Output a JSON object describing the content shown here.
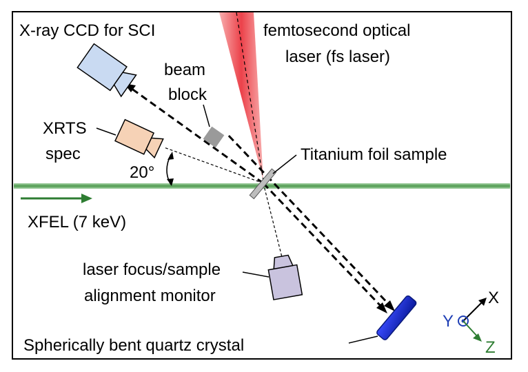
{
  "labels": {
    "ccd": "X-ray CCD for SCI",
    "laser_line1": "femtosecond optical",
    "laser_line2": "laser (fs laser)",
    "beam_block_line1": "beam",
    "beam_block_line2": "block",
    "xrts_line1": "XRTS",
    "xrts_line2": "spec",
    "angle": "20°",
    "sample": "Titanium foil sample",
    "xfel": "XFEL (7 keV)",
    "monitor_line1": "laser focus/sample",
    "monitor_line2": "alignment monitor",
    "crystal": "Spherically bent quartz crystal",
    "axis_x": "X",
    "axis_y": "Y",
    "axis_z": "Z"
  },
  "colors": {
    "laser": "#f03a3a",
    "xfel": "#6fae6f",
    "xfel_arrow": "#2e7d32",
    "ccd": "#c9daf2",
    "xrts": "#f6d2b6",
    "monitor": "#c9c3de",
    "beam_block": "#9a9a9a",
    "crystal": "#1f2fd6",
    "sample": "#bdbdbd",
    "axis_y": "#1f3fb5",
    "axis_z": "#2e7d32"
  },
  "icons": {
    "ccd": "camera-icon",
    "xrts": "camera-icon",
    "monitor": "camera-icon"
  }
}
